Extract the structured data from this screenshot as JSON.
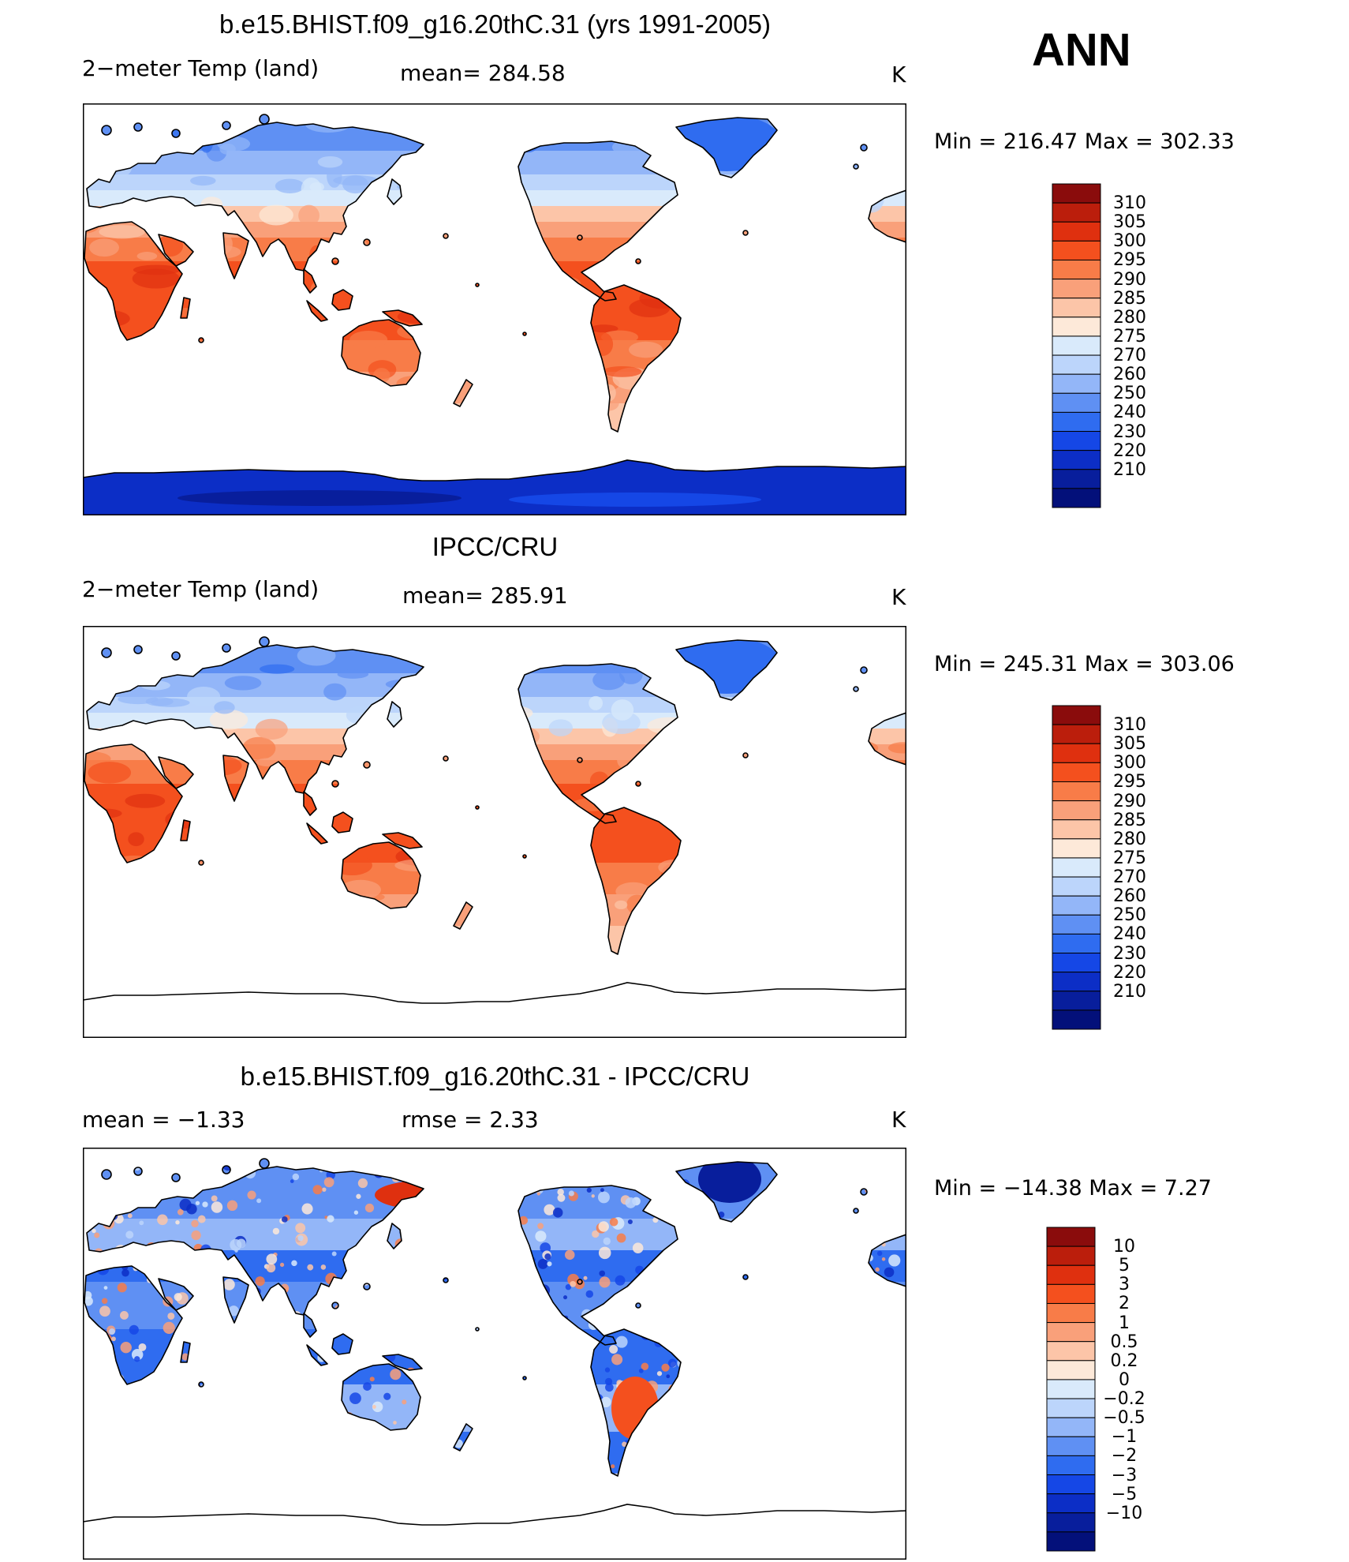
{
  "season": "ANN",
  "palette": {
    "absolute": [
      "#8a0c0c",
      "#bb1e0c",
      "#df300f",
      "#f4501e",
      "#f87c48",
      "#f9a07a",
      "#fcc5a8",
      "#fde9d9",
      "#d9eafb",
      "#bcd5fb",
      "#93b6f8",
      "#5f90f3",
      "#2f6cf0",
      "#1547e6",
      "#0c2ec6",
      "#081e9c",
      "#03107a"
    ],
    "diff": [
      "#8a0c0c",
      "#bb1e0c",
      "#df300f",
      "#f4501e",
      "#f87c48",
      "#f9a07a",
      "#fcc5a8",
      "#fde9d9",
      "#d9eafb",
      "#bcd5fb",
      "#93b6f8",
      "#5f90f3",
      "#2f6cf0",
      "#1547e6",
      "#0c2ec6",
      "#081e9c",
      "#03107a"
    ]
  },
  "panels": [
    {
      "id": "model",
      "header": "b.e15.BHIST.f09_g16.20thC.31 (yrs 1991-2005)",
      "left_label": "2−meter Temp (land)",
      "center_label": "mean=  284.58",
      "units": "K",
      "minmax": "Min  =  216.47  Max  =  302.33",
      "ticks": [
        "310",
        "305",
        "300",
        "295",
        "290",
        "285",
        "280",
        "275",
        "270",
        "260",
        "250",
        "240",
        "230",
        "220",
        "210"
      ],
      "antarctica": true,
      "mode": "model"
    },
    {
      "id": "obs",
      "header": "IPCC/CRU",
      "left_label": "2−meter Temp (land)",
      "center_label": "mean=  285.91",
      "units": "K",
      "minmax": "Min  =  245.31  Max  =  303.06",
      "ticks": [
        "310",
        "305",
        "300",
        "295",
        "290",
        "285",
        "280",
        "275",
        "270",
        "260",
        "250",
        "240",
        "230",
        "220",
        "210"
      ],
      "antarctica": false,
      "mode": "obs"
    },
    {
      "id": "diff",
      "header": "b.e15.BHIST.f09_g16.20thC.31 - IPCC/CRU",
      "left_label": "mean  =    −1.33",
      "center_label": "rmse  =     2.33",
      "units": "K",
      "minmax": "Min  =  −14.38  Max  =      7.27",
      "ticks": [
        "10",
        "5",
        "3",
        "2",
        "1",
        "0.5",
        "0.2",
        "0",
        "−0.2",
        "−0.5",
        "−1",
        "−2",
        "−3",
        "−5",
        "−10"
      ],
      "antarctica": false,
      "mode": "diff"
    }
  ]
}
